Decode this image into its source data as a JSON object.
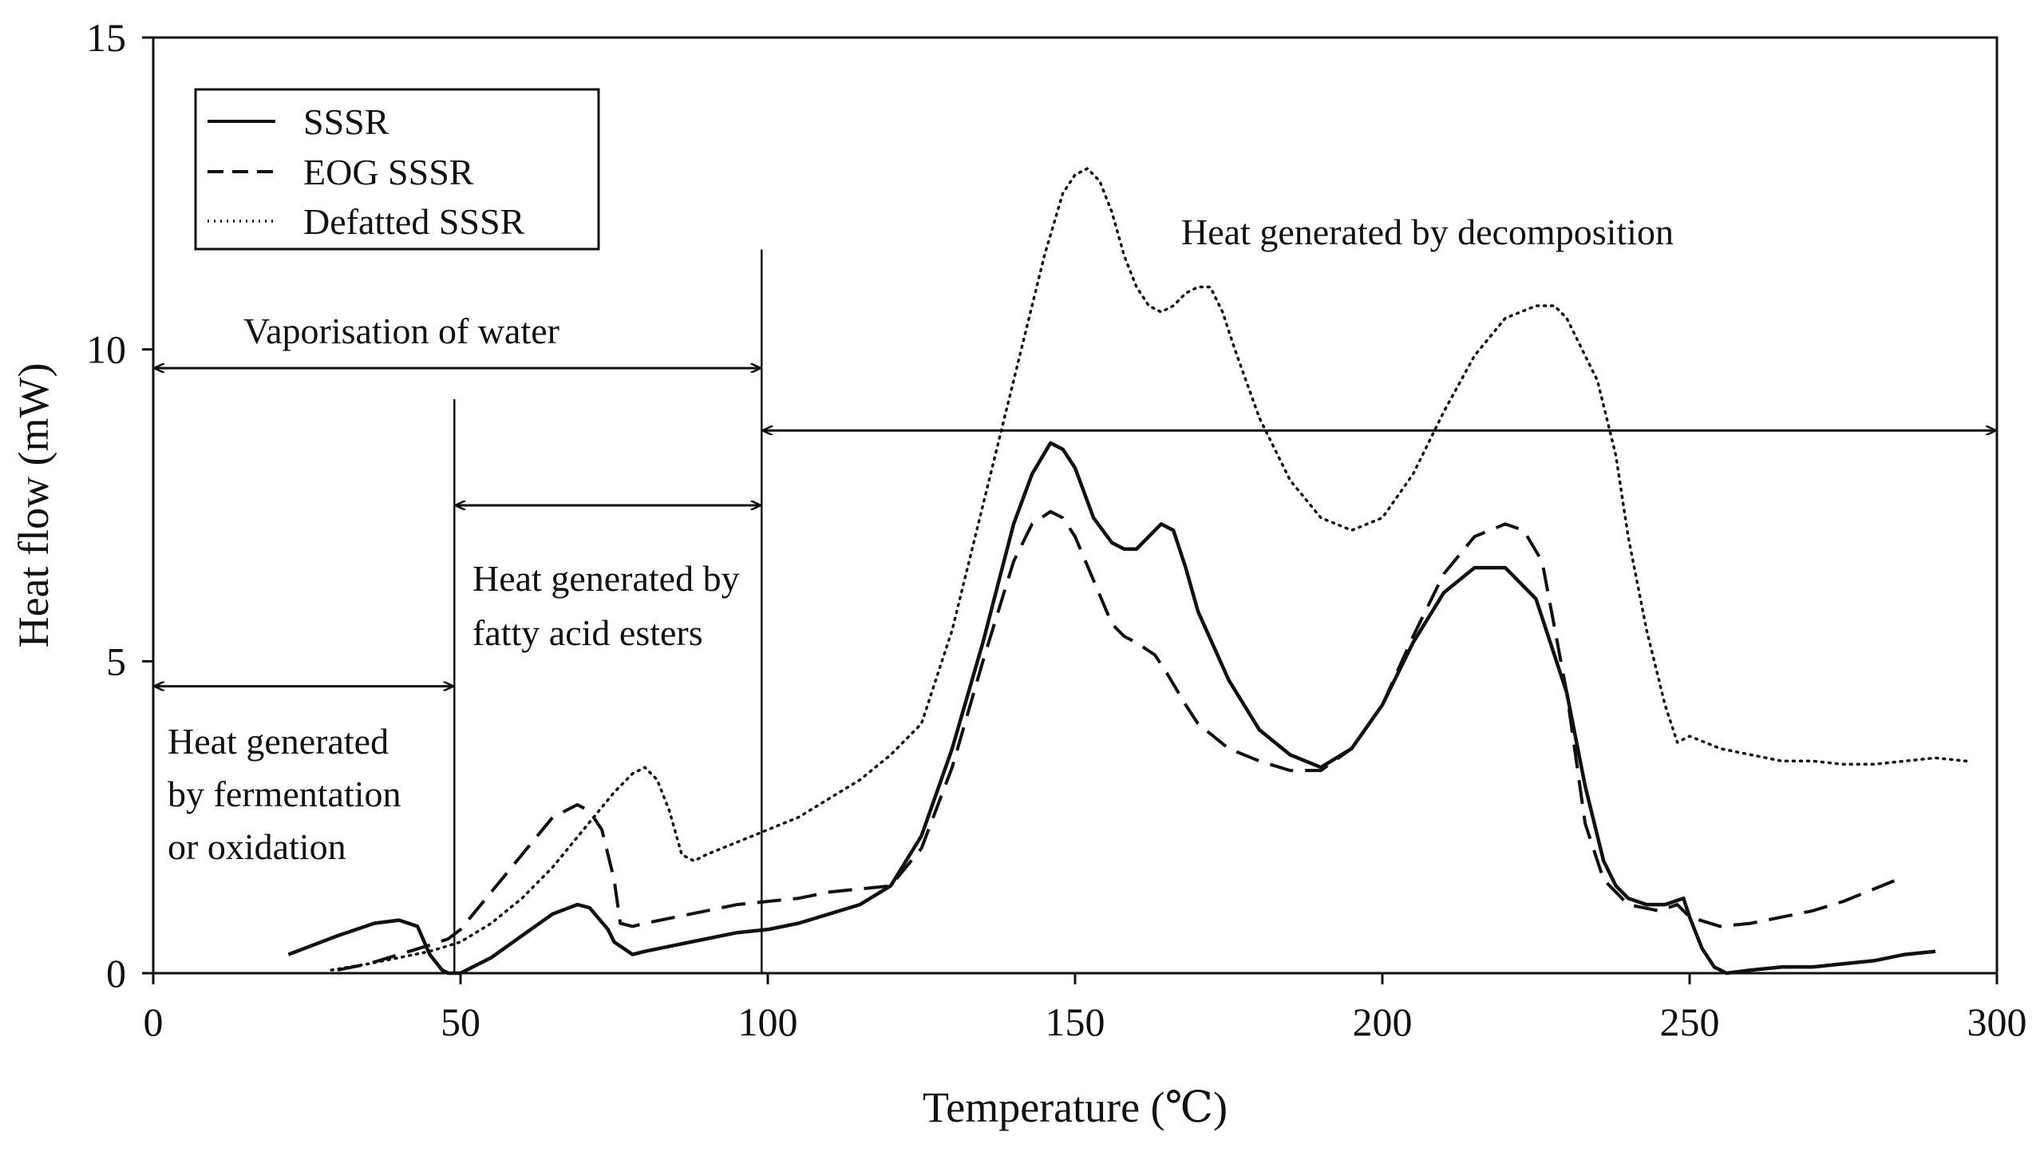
{
  "chart_data": {
    "type": "line",
    "title": "",
    "xlabel": "Temperature (℃)",
    "ylabel": "Heat flow (mW)",
    "xlim": [
      0,
      300
    ],
    "ylim": [
      0,
      15
    ],
    "xticks": [
      0,
      50,
      100,
      150,
      200,
      250,
      300
    ],
    "yticks": [
      0,
      5,
      10,
      15
    ],
    "xtick_labels": [
      "0",
      "50",
      "100",
      "150",
      "200",
      "250",
      "300"
    ],
    "ytick_labels": [
      "0",
      "5",
      "10",
      "15"
    ],
    "grid": false,
    "legend": {
      "position": "top-left"
    },
    "series": [
      {
        "name": "SSSR",
        "style": "solid",
        "x": [
          22,
          30,
          36,
          40,
          43,
          45,
          47,
          48,
          50,
          55,
          60,
          65,
          69,
          71,
          74,
          75,
          78,
          80,
          85,
          90,
          95,
          100,
          105,
          110,
          115,
          120,
          125,
          130,
          135,
          140,
          143,
          146,
          148,
          150,
          153,
          156,
          158,
          160,
          162,
          164,
          166,
          168,
          170,
          175,
          180,
          185,
          190,
          195,
          200,
          205,
          210,
          215,
          220,
          225,
          230,
          233,
          236,
          238,
          240,
          243,
          246,
          249,
          250,
          252,
          254,
          256,
          260,
          265,
          270,
          275,
          280,
          285,
          290
        ],
        "y": [
          0.3,
          0.6,
          0.8,
          0.85,
          0.75,
          0.3,
          0.05,
          0,
          0,
          0.25,
          0.6,
          0.95,
          1.1,
          1.05,
          0.7,
          0.5,
          0.3,
          0.35,
          0.45,
          0.55,
          0.65,
          0.7,
          0.8,
          0.95,
          1.1,
          1.4,
          2.2,
          3.6,
          5.3,
          7.2,
          8.0,
          8.5,
          8.4,
          8.1,
          7.3,
          6.9,
          6.8,
          6.8,
          7.0,
          7.2,
          7.1,
          6.5,
          5.8,
          4.7,
          3.9,
          3.5,
          3.3,
          3.6,
          4.3,
          5.3,
          6.1,
          6.5,
          6.5,
          6.0,
          4.5,
          3.0,
          1.8,
          1.4,
          1.2,
          1.1,
          1.1,
          1.2,
          0.9,
          0.4,
          0.1,
          0,
          0.05,
          0.1,
          0.1,
          0.15,
          0.2,
          0.3,
          0.35
        ]
      },
      {
        "name": "EOG SSSR",
        "style": "dashed",
        "x": [
          30,
          35,
          40,
          45,
          48,
          50,
          55,
          60,
          65,
          69,
          71,
          73,
          75,
          76,
          78,
          80,
          85,
          90,
          95,
          100,
          105,
          110,
          115,
          120,
          125,
          130,
          135,
          140,
          143,
          146,
          148,
          150,
          153,
          156,
          158,
          160,
          163,
          165,
          168,
          170,
          175,
          180,
          185,
          190,
          195,
          200,
          205,
          210,
          215,
          220,
          223,
          226,
          230,
          233,
          236,
          240,
          245,
          248,
          250,
          255,
          260,
          265,
          270,
          275,
          280,
          285
        ],
        "y": [
          0.05,
          0.15,
          0.3,
          0.45,
          0.55,
          0.7,
          1.3,
          1.9,
          2.5,
          2.7,
          2.6,
          2.3,
          1.5,
          0.8,
          0.75,
          0.8,
          0.9,
          1.0,
          1.1,
          1.15,
          1.2,
          1.3,
          1.35,
          1.4,
          2.0,
          3.3,
          5.0,
          6.6,
          7.2,
          7.4,
          7.3,
          7.0,
          6.3,
          5.6,
          5.4,
          5.3,
          5.1,
          4.8,
          4.3,
          4.0,
          3.6,
          3.4,
          3.25,
          3.25,
          3.6,
          4.3,
          5.4,
          6.4,
          7.0,
          7.2,
          7.1,
          6.6,
          4.5,
          2.4,
          1.5,
          1.1,
          1.0,
          1.1,
          0.9,
          0.75,
          0.8,
          0.9,
          1.0,
          1.15,
          1.35,
          1.55
        ]
      },
      {
        "name": "Defatted SSSR",
        "style": "dotted",
        "x": [
          29,
          35,
          40,
          45,
          50,
          55,
          60,
          65,
          70,
          75,
          78,
          80,
          82,
          84,
          86,
          88,
          90,
          95,
          100,
          105,
          110,
          115,
          120,
          125,
          130,
          135,
          140,
          145,
          148,
          150,
          152,
          154,
          156,
          158,
          160,
          162,
          164,
          166,
          168,
          170,
          172,
          174,
          176,
          180,
          185,
          190,
          195,
          200,
          205,
          210,
          215,
          220,
          225,
          228,
          230,
          235,
          238,
          240,
          243,
          246,
          248,
          250,
          255,
          260,
          265,
          270,
          275,
          280,
          285,
          290,
          295
        ],
        "y": [
          0.05,
          0.15,
          0.25,
          0.35,
          0.5,
          0.8,
          1.2,
          1.7,
          2.3,
          2.9,
          3.2,
          3.3,
          3.1,
          2.6,
          1.9,
          1.8,
          1.9,
          2.1,
          2.3,
          2.5,
          2.8,
          3.1,
          3.5,
          4.0,
          5.5,
          7.5,
          9.5,
          11.5,
          12.5,
          12.8,
          12.9,
          12.7,
          12.2,
          11.5,
          11.0,
          10.7,
          10.6,
          10.7,
          10.9,
          11.0,
          11.0,
          10.6,
          10.0,
          8.9,
          7.9,
          7.3,
          7.1,
          7.3,
          8.0,
          9.0,
          9.9,
          10.5,
          10.7,
          10.7,
          10.5,
          9.5,
          8.3,
          7.0,
          5.5,
          4.3,
          3.7,
          3.8,
          3.6,
          3.5,
          3.4,
          3.4,
          3.35,
          3.35,
          3.4,
          3.45,
          3.4
        ]
      }
    ],
    "legend_entries": [
      "SSSR",
      "EOG SSSR",
      "Defatted SSSR"
    ],
    "annotations": {
      "fermentation": [
        "Heat generated",
        "by fermentation",
        "or oxidation"
      ],
      "fatty": [
        "Heat generated by",
        "fatty acid esters"
      ],
      "water": "Vaporisation of water",
      "decomposition": "Heat generated by decomposition"
    },
    "regions": {
      "fermentation": [
        0,
        49
      ],
      "fatty": [
        49,
        99
      ],
      "water": [
        0,
        99
      ],
      "decomposition": [
        99,
        300
      ]
    },
    "region_arrow_levels": {
      "fermentation": 4.6,
      "fatty": 7.5,
      "water": 9.7,
      "decomposition": 8.7
    },
    "dividers": [
      {
        "x": 49,
        "y_top": 9.2
      },
      {
        "x": 99,
        "y_top": 11.6
      }
    ]
  }
}
